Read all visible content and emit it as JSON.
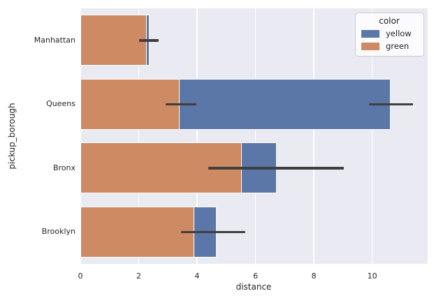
{
  "chart_data": {
    "type": "bar",
    "orientation": "horizontal",
    "title": "",
    "xlabel": "distance",
    "ylabel": "pickup_borough",
    "categories": [
      "Manhattan",
      "Queens",
      "Bronx",
      "Brooklyn"
    ],
    "series": [
      {
        "name": "yellow",
        "color": "#5a77a7",
        "values": [
          2.37,
          10.62,
          6.72,
          4.66
        ]
      },
      {
        "name": "green",
        "color": "#cd8a63",
        "values": [
          2.28,
          3.39,
          5.53,
          3.9
        ]
      }
    ],
    "error_bars": [
      {
        "category": "Manhattan",
        "from": 2.0,
        "to": 2.68
      },
      {
        "category": "Queens",
        "from": 2.92,
        "to": 3.97
      },
      {
        "category": "Queens",
        "from": 9.9,
        "to": 11.39
      },
      {
        "category": "Bronx",
        "from": 4.38,
        "to": 9.02
      },
      {
        "category": "Brooklyn",
        "from": 3.45,
        "to": 5.65
      }
    ],
    "xlim": [
      0,
      11.9
    ],
    "xticks": [
      0,
      2,
      4,
      6,
      8,
      10
    ],
    "grid": "vertical-white",
    "legend": {
      "title": "color",
      "position": "upper-right",
      "entries": [
        {
          "label": "yellow",
          "color": "#5a77a7"
        },
        {
          "label": "green",
          "color": "#cd8a63"
        }
      ]
    },
    "colors": {
      "figure_bg": "#ffffff",
      "plot_bg": "#eaeaf2",
      "grid": "#ffffff",
      "bar_edge": "#ffffff",
      "error_bar": "#3f3f3f",
      "text": "#262626",
      "legend_border": "#cccccc"
    }
  }
}
